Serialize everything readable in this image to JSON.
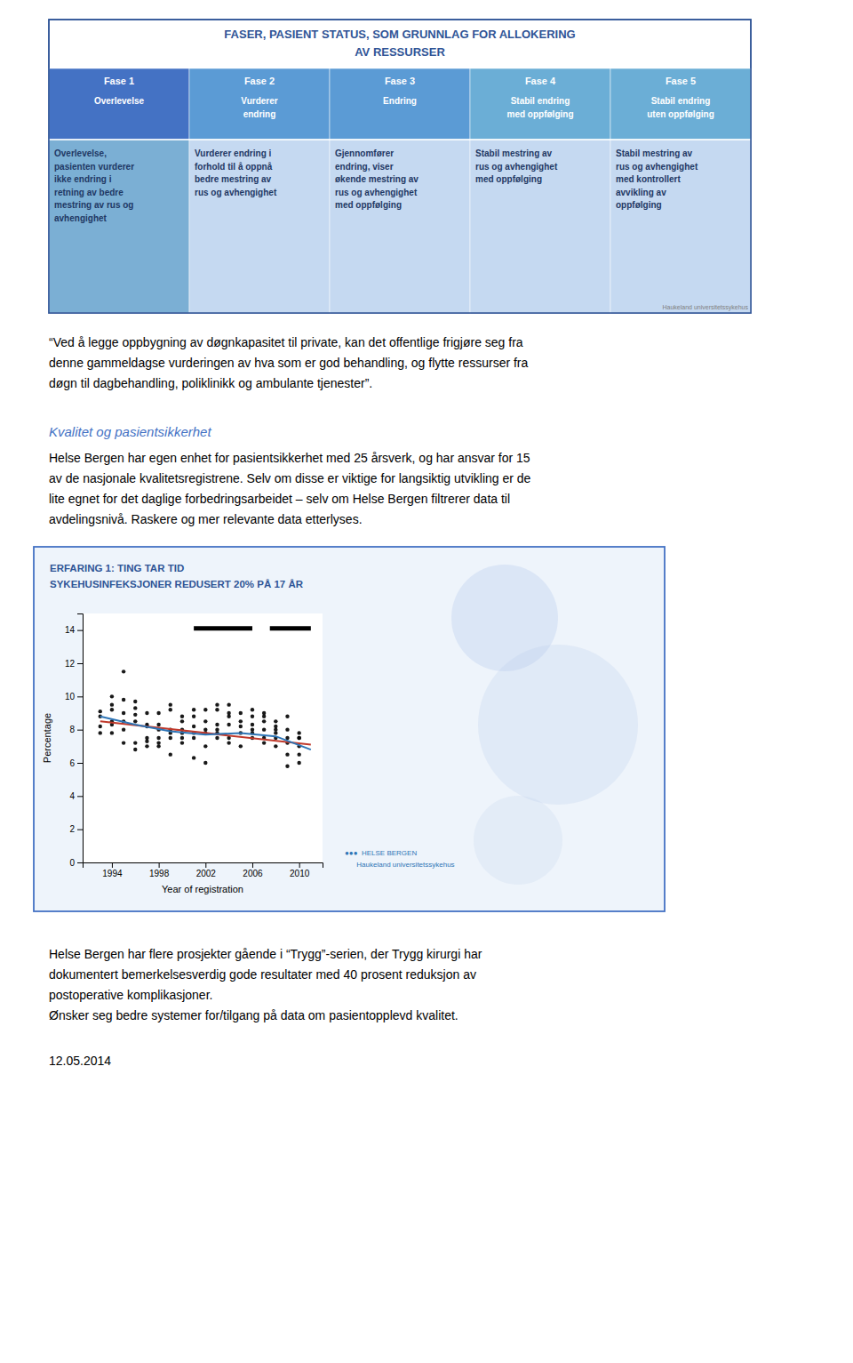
{
  "page": {
    "page_bg": "#FFFFFF",
    "table_border": "#2F5496",
    "heading_color": "#4472C4",
    "box_border": "#4472C4",
    "title_table": "FASER, PASIENT STATUS, SOM GRUNNLAG FOR ALLOKERING\nAV RESSURSER",
    "col_headers": [
      "Fase 1\n\nOverlevelse",
      "Fase 2\n\nVurderer\nendring",
      "Fase 3\n\nEndring",
      "Fase 4\n\nStabil endring\nmed oppfølging",
      "Fase 5\n\nStabil endring\nuten oppfølging"
    ],
    "col_body": [
      "Overlevelse,\npasienten vurderer\nikke endring i\nretning av bedre\nmestring av rus og\navhengighet",
      "Vurderer endring i\nforhold til å oppnå\nbedre mestring av\nrus og avhengighet",
      "Gjennomfører\nendring, viser\nøkende mestring av\nrus og avhengighet\nmed oppfølging",
      "Stabil mestring av\nrus og avhengighet\nmed oppfølging",
      "Stabil mestring av\nrus og avhengighet\nmed kontrollert\navvikling av\noppfølging"
    ],
    "header_colors": [
      "#4472C4",
      "#5B9BD5",
      "#5B9BD5",
      "#6BAED6",
      "#6BAED6"
    ],
    "body_colors": [
      "#7BAFD4",
      "#C5D9F1",
      "#C5D9F1",
      "#C5D9F1",
      "#C5D9F1"
    ],
    "credit_text": "Haukeland universitetssykehus",
    "quote_text": "“Ved å legge oppbygning av døgnkapasitet til private, kan det offentlige frigjøre seg fra\ndenne gammeldagse vurderingen av hva som er god behandling, og flytte ressurser fra\ndøgn til dagbehandling, poliklinikk og ambulante tjenester”.",
    "section_heading": "Kvalitet og pasientsikkerhet",
    "body_text1": "Helse Bergen har egen enhet for pasientsikkerhet med 25 årsverk, og har ansvar for 15\nav de nasjonale kvalitetsregistrene. Selv om disse er viktige for langsiktig utvikling er de\nlite egnet for det daglige forbedringsarbeidet – selv om Helse Bergen filtrerer data til\navdelingsnivå. Raskere og mer relevante data etterlyses.",
    "erfaring_title": "ERFARING 1: TING TAR TID\nSYKEHUSINFEKSJONER REDUSERT 20% PÅ 17 ÅR",
    "logo_text": "●●●  HELSE BERGEN\n      Haukeland universitetssykehus",
    "bottom_text": "Helse Bergen har flere prosjekter gående i “Trygg”-serien, der Trygg kirurgi har\ndokumentert bemerkelsesverdig gode resultater med 40 prosent reduksjon av\npostoperative komplikasjoner.\nØnsker seg bedre systemer for/tilgang på data om pasientopplevd kvalitet.",
    "date_text": "12.05.2014"
  },
  "chart_data": {
    "type": "scatter",
    "xlabel": "Year of registration",
    "ylabel": "Percentage",
    "xlim": [
      1991.5,
      2012
    ],
    "ylim": [
      0,
      15
    ],
    "xticks": [
      1994,
      1998,
      2002,
      2006,
      2010
    ],
    "yticks": [
      0,
      2,
      4,
      6,
      8,
      10,
      12,
      14
    ],
    "grid": false,
    "series": [
      {
        "type": "scatter",
        "color": "#000000",
        "x": [
          1993,
          1993,
          1993,
          1993,
          1994,
          1994,
          1994,
          1994,
          1994,
          1994,
          1995,
          1995,
          1995,
          1995,
          1995,
          1995,
          1996,
          1996,
          1996,
          1996,
          1996,
          1996,
          1997,
          1997,
          1997,
          1997,
          1997,
          1997,
          1998,
          1998,
          1998,
          1998,
          1998,
          1998,
          1999,
          1999,
          1999,
          1999,
          1999,
          1999,
          2000,
          2000,
          2000,
          2000,
          2000,
          2000,
          2001,
          2001,
          2001,
          2001,
          2001,
          2001,
          2002,
          2002,
          2002,
          2002,
          2002,
          2002,
          2003,
          2003,
          2003,
          2003,
          2003,
          2003,
          2004,
          2004,
          2004,
          2004,
          2004,
          2004,
          2005,
          2005,
          2005,
          2005,
          2005,
          2006,
          2006,
          2006,
          2006,
          2006,
          2006,
          2007,
          2007,
          2007,
          2007,
          2007,
          2007,
          2008,
          2008,
          2008,
          2008,
          2008,
          2008,
          2009,
          2009,
          2009,
          2009,
          2009,
          2009,
          2010,
          2010,
          2010,
          2010,
          2010,
          2010
        ],
        "values": [
          8.2,
          7.8,
          8.8,
          9.1,
          9.5,
          8.3,
          10.0,
          8.5,
          9.2,
          7.8,
          8.0,
          9.0,
          11.5,
          8.5,
          9.8,
          7.2,
          8.5,
          9.3,
          7.2,
          8.9,
          9.7,
          6.8,
          8.2,
          7.5,
          7.0,
          9.0,
          8.3,
          7.3,
          8.3,
          7.0,
          9.0,
          7.2,
          7.5,
          8.0,
          9.5,
          6.5,
          7.8,
          8.0,
          7.5,
          9.2,
          8.0,
          8.8,
          7.5,
          7.2,
          7.8,
          8.5,
          9.2,
          7.8,
          8.2,
          6.3,
          7.5,
          8.8,
          9.2,
          8.5,
          7.0,
          8.0,
          6.0,
          7.8,
          9.5,
          8.3,
          7.5,
          7.8,
          8.0,
          9.2,
          9.0,
          7.5,
          8.8,
          7.2,
          8.3,
          9.5,
          8.5,
          7.0,
          7.8,
          9.0,
          8.2,
          9.2,
          8.0,
          7.5,
          8.3,
          7.8,
          8.8,
          8.5,
          7.2,
          9.0,
          8.0,
          7.5,
          8.8,
          7.8,
          8.5,
          7.0,
          8.2,
          7.5,
          8.0,
          6.5,
          8.0,
          7.5,
          8.8,
          5.8,
          7.2,
          7.0,
          7.5,
          7.8,
          6.5,
          6.0,
          7.5
        ]
      },
      {
        "type": "line",
        "color": "#C0392B",
        "x": [
          1993,
          2011
        ],
        "values": [
          8.5,
          7.1
        ]
      },
      {
        "type": "line",
        "color": "#2E75B6",
        "x": [
          1993,
          1996,
          1999,
          2002,
          2005,
          2008,
          2011
        ],
        "values": [
          8.8,
          8.3,
          7.9,
          7.7,
          7.8,
          7.6,
          6.8
        ]
      },
      {
        "type": "range",
        "color": "#000000",
        "x": [
          2001,
          2006
        ],
        "values": [
          14.1,
          14.1
        ]
      },
      {
        "type": "range",
        "color": "#000000",
        "x": [
          2007.5,
          2011
        ],
        "values": [
          14.1,
          14.1
        ]
      }
    ]
  }
}
